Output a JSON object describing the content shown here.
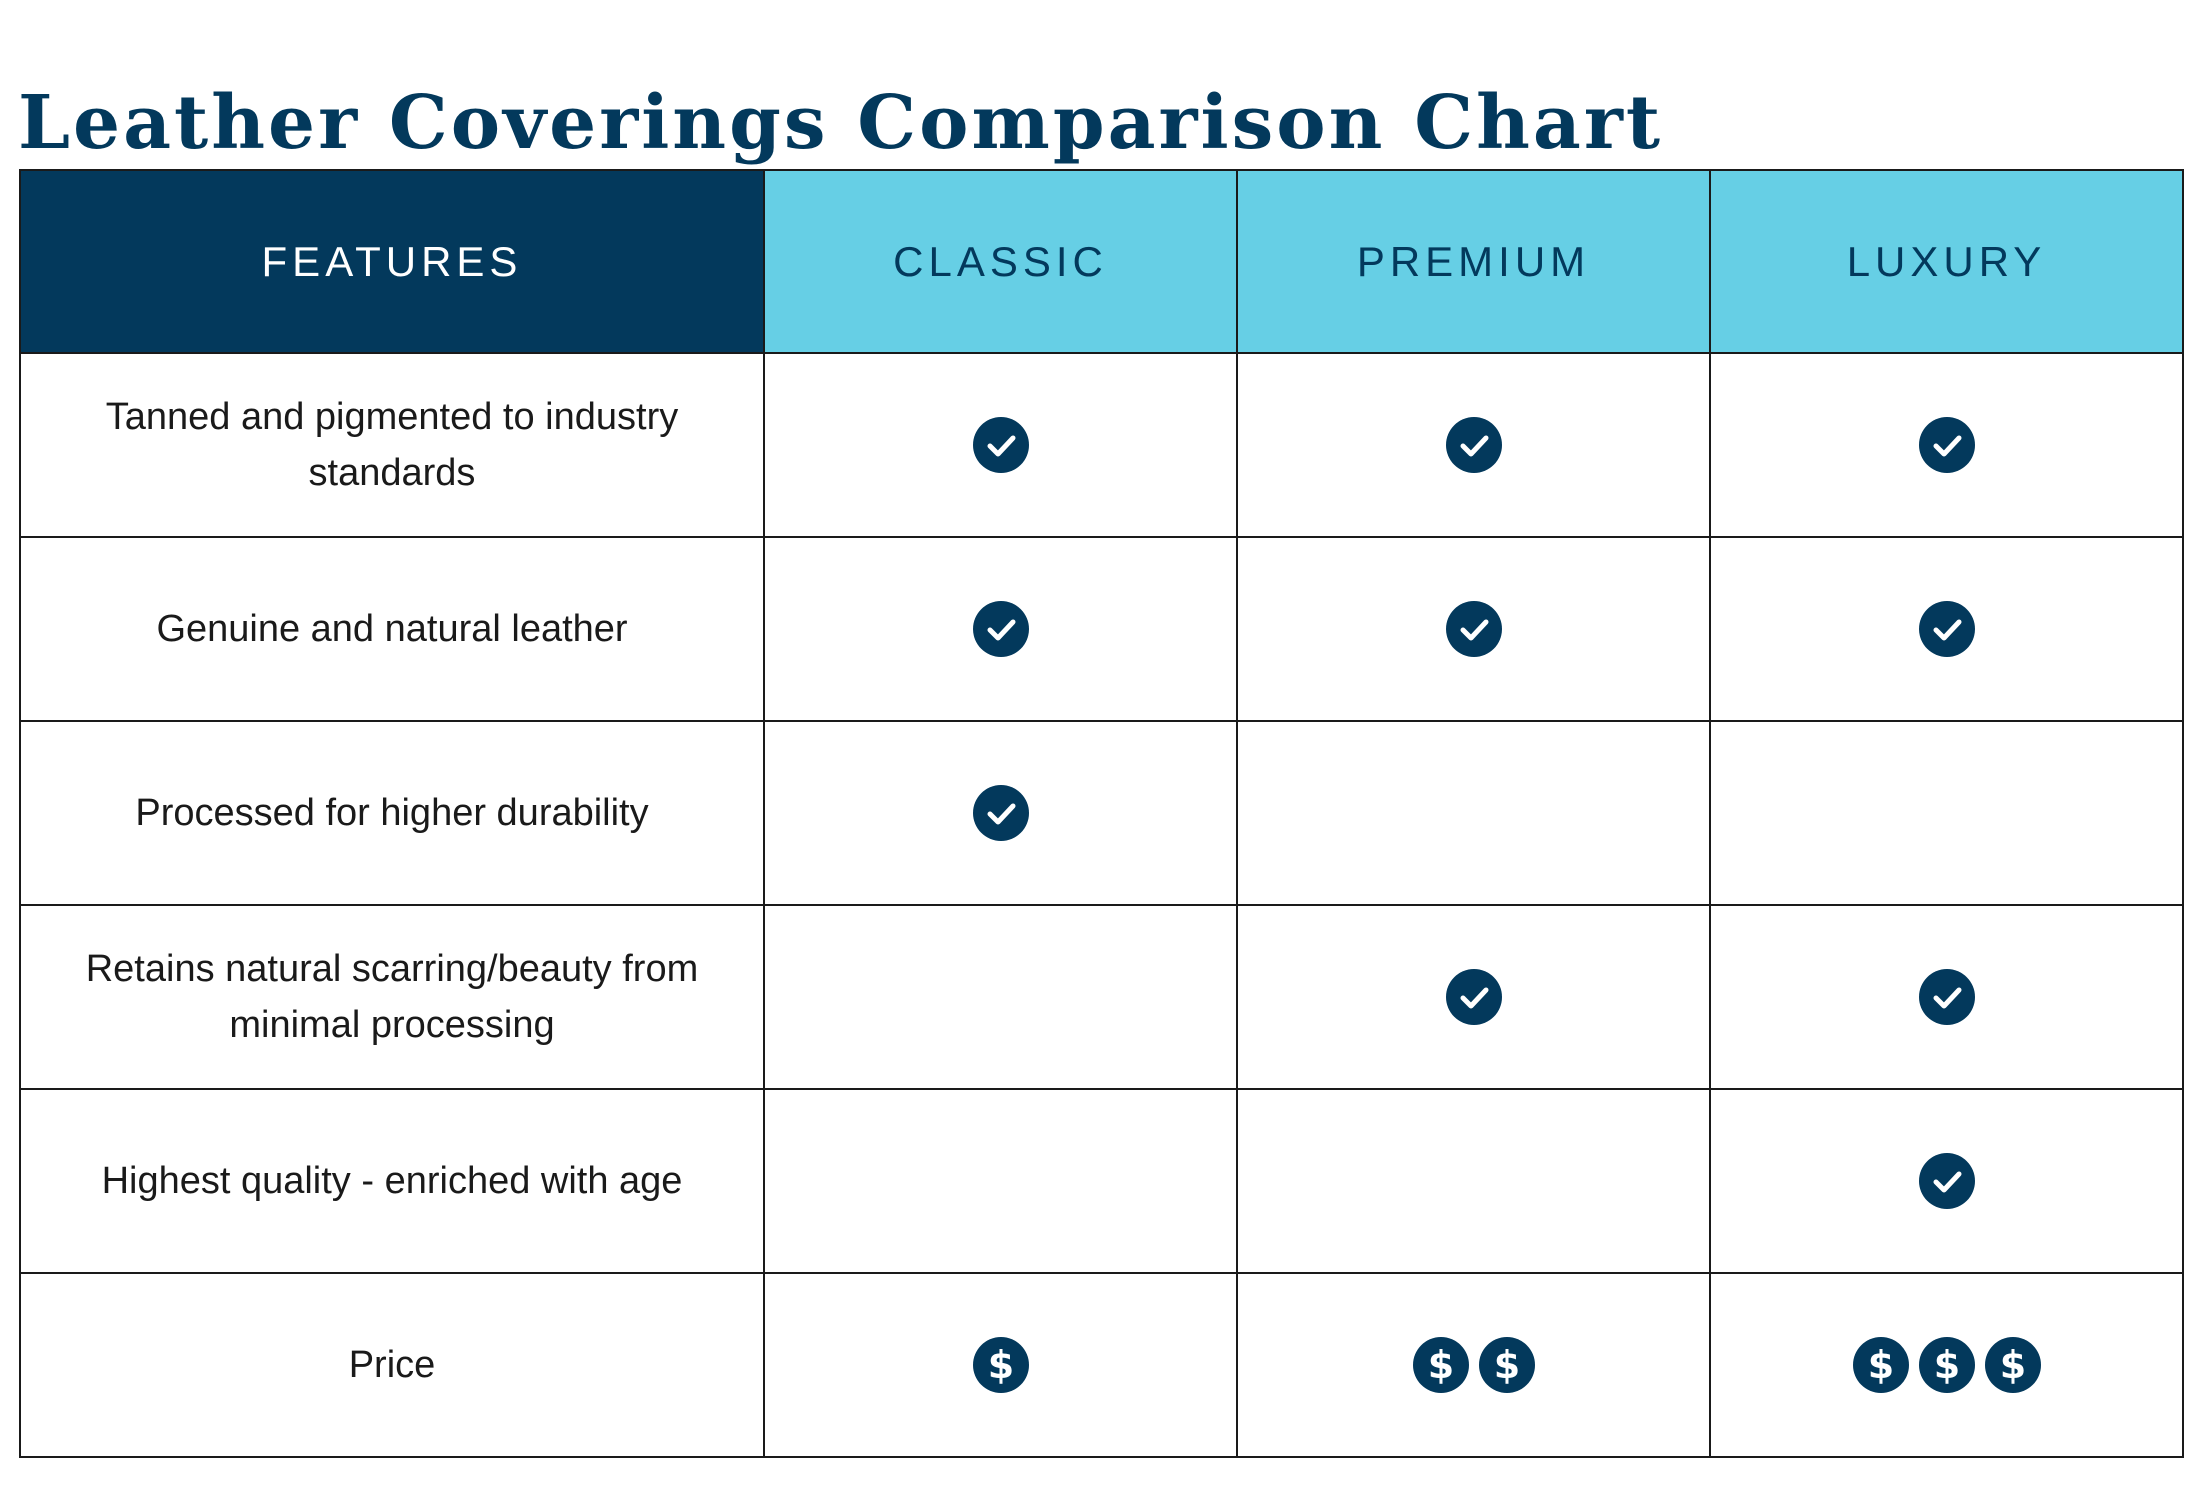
{
  "title": "Leather Coverings Comparison Chart",
  "colors": {
    "navy": "#03395c",
    "cyan": "#66cfe5"
  },
  "columns": [
    "FEATURES",
    "CLASSIC",
    "PREMIUM",
    "LUXURY"
  ],
  "rows": [
    {
      "feature": "Tanned and pigmented to industry standards",
      "classic": true,
      "premium": true,
      "luxury": true
    },
    {
      "feature": "Genuine and natural leather",
      "classic": true,
      "premium": true,
      "luxury": true
    },
    {
      "feature": "Processed for higher durability",
      "classic": true,
      "premium": false,
      "luxury": false
    },
    {
      "feature": "Retains natural scarring/beauty from minimal processing",
      "classic": false,
      "premium": true,
      "luxury": true
    },
    {
      "feature": "Highest quality - enriched with age",
      "classic": false,
      "premium": false,
      "luxury": true
    }
  ],
  "price": {
    "label": "Price",
    "classic": 1,
    "premium": 2,
    "luxury": 3
  },
  "icons": {
    "included": "check-circle-icon",
    "price": "dollar-circle-icon"
  }
}
